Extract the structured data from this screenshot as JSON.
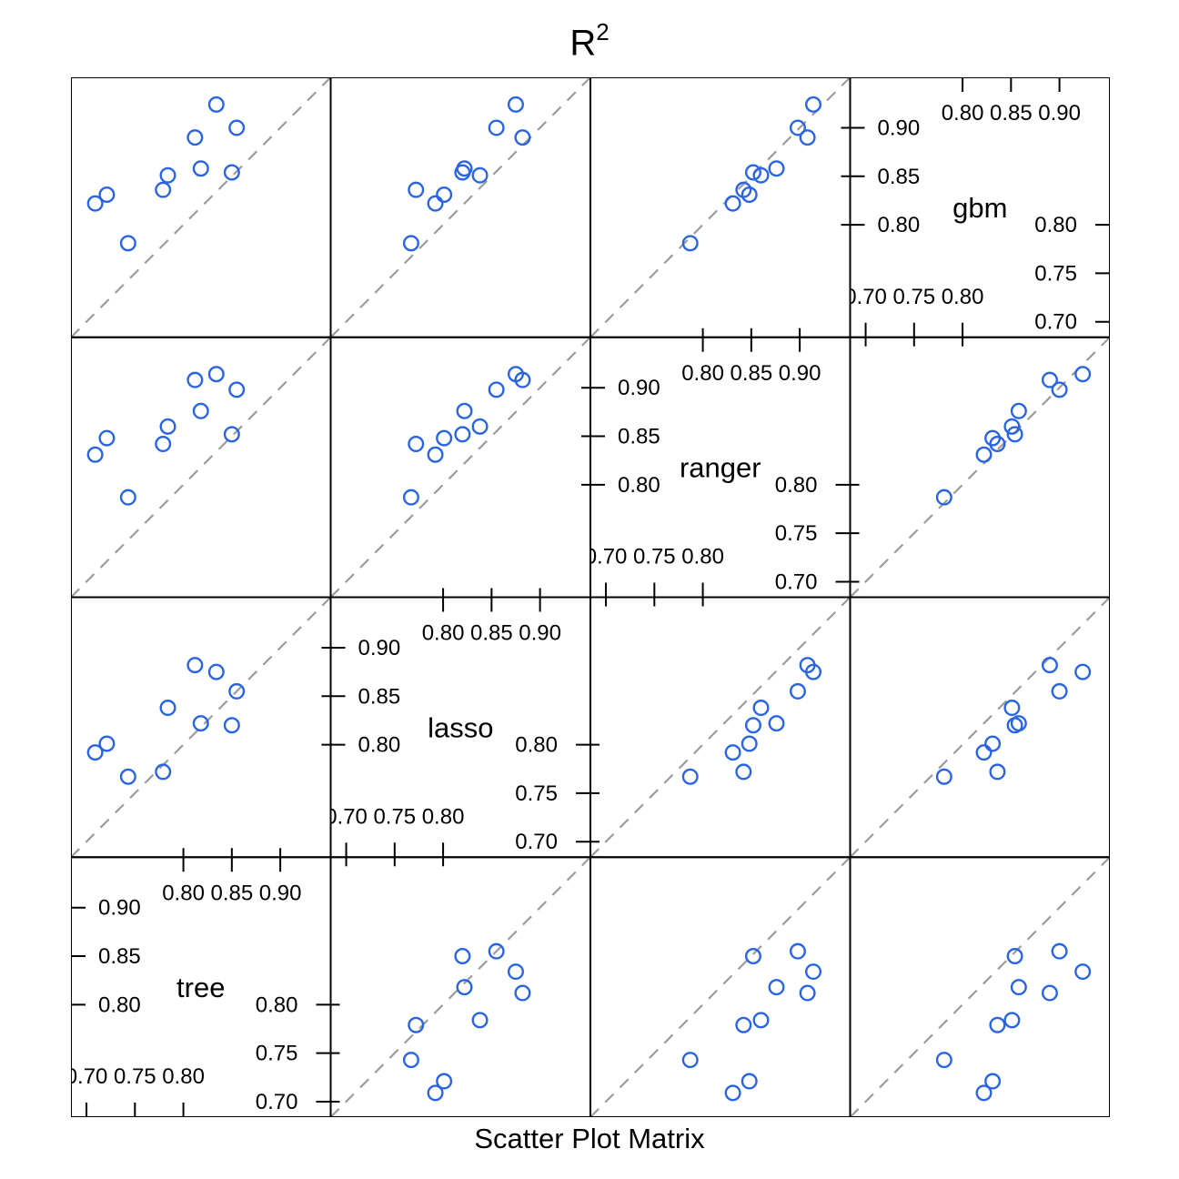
{
  "chart_data": {
    "type": "scatter",
    "subtype": "scatter-plot-matrix",
    "title": "R²",
    "title_base": "R",
    "title_superscript": "2",
    "caption": "Scatter Plot Matrix",
    "variables": [
      "tree",
      "lasso",
      "ranger",
      "gbm"
    ],
    "diagonal_order_note": "diagonal runs from tree (bottom-left) to gbm (top-right)",
    "axis_range": [
      0.684,
      0.952
    ],
    "diagonal_axis_labels": {
      "top": [
        "0.80",
        "0.85",
        "0.90"
      ],
      "bottom": [
        "0.70",
        "0.75",
        "0.80"
      ],
      "left": [
        "0.90",
        "0.85",
        "0.80"
      ],
      "right": [
        "0.80",
        "0.75",
        "0.70"
      ]
    },
    "reference_line": "dashed y = x identity line in every scatter panel",
    "legend": "none",
    "grid": "off",
    "colors": {
      "point": "#2B64E0",
      "dash": "#9C9C9C",
      "border": "#000000",
      "text": "#000000",
      "background": "#FFFFFF"
    },
    "observations": [
      {
        "tree": 0.743,
        "lasso": 0.767,
        "ranger": 0.787,
        "gbm": 0.781
      },
      {
        "tree": 0.709,
        "lasso": 0.792,
        "ranger": 0.831,
        "gbm": 0.822
      },
      {
        "tree": 0.779,
        "lasso": 0.772,
        "ranger": 0.842,
        "gbm": 0.836
      },
      {
        "tree": 0.721,
        "lasso": 0.801,
        "ranger": 0.848,
        "gbm": 0.831
      },
      {
        "tree": 0.85,
        "lasso": 0.82,
        "ranger": 0.852,
        "gbm": 0.854
      },
      {
        "tree": 0.784,
        "lasso": 0.838,
        "ranger": 0.86,
        "gbm": 0.851
      },
      {
        "tree": 0.818,
        "lasso": 0.822,
        "ranger": 0.876,
        "gbm": 0.858
      },
      {
        "tree": 0.855,
        "lasso": 0.855,
        "ranger": 0.898,
        "gbm": 0.9
      },
      {
        "tree": 0.812,
        "lasso": 0.882,
        "ranger": 0.908,
        "gbm": 0.89
      },
      {
        "tree": 0.834,
        "lasso": 0.875,
        "ranger": 0.914,
        "gbm": 0.924
      }
    ]
  }
}
